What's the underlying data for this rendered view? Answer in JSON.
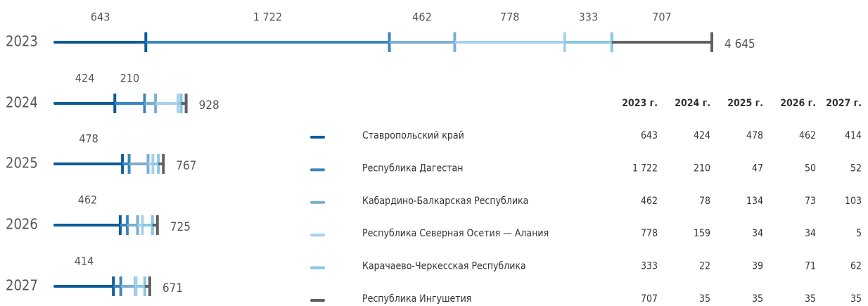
{
  "chart_data": {
    "type": "segmented-line",
    "categories": [
      "2023",
      "2024",
      "2025",
      "2026",
      "2027"
    ],
    "table_headers": [
      "2023 г.",
      "2024 г.",
      "2025 г.",
      "2026 г.",
      "2027 г."
    ],
    "series": [
      {
        "name": "Ставропольский край",
        "color": "#0b5c99",
        "values": [
          643,
          424,
          478,
          462,
          414
        ]
      },
      {
        "name": "Республика Дагестан",
        "color": "#3a87bd",
        "values": [
          1722,
          210,
          47,
          50,
          52
        ],
        "value_labels": [
          "1 722",
          "210",
          "47",
          "50",
          "52"
        ]
      },
      {
        "name": "Кабардино-Балкарская Республика",
        "color": "#7aaed0",
        "values": [
          462,
          78,
          134,
          73,
          103
        ]
      },
      {
        "name": "Республика Северная Осетия — Алания",
        "color": "#a9d0ea",
        "values": [
          778,
          159,
          34,
          34,
          5
        ]
      },
      {
        "name": "Карачаево-Черкесская Республика",
        "color": "#86c8e6",
        "values": [
          333,
          22,
          39,
          71,
          62
        ]
      },
      {
        "name": "Республика Ингушетия",
        "color": "#606163",
        "values": [
          707,
          35,
          35,
          35,
          35
        ]
      }
    ],
    "totals": {
      "values": [
        4645,
        928,
        767,
        725,
        671
      ],
      "value_labels": [
        "4 645",
        "928",
        "767",
        "725",
        "671"
      ]
    },
    "labelled_segments": [
      6,
      2,
      1,
      1,
      1
    ]
  }
}
